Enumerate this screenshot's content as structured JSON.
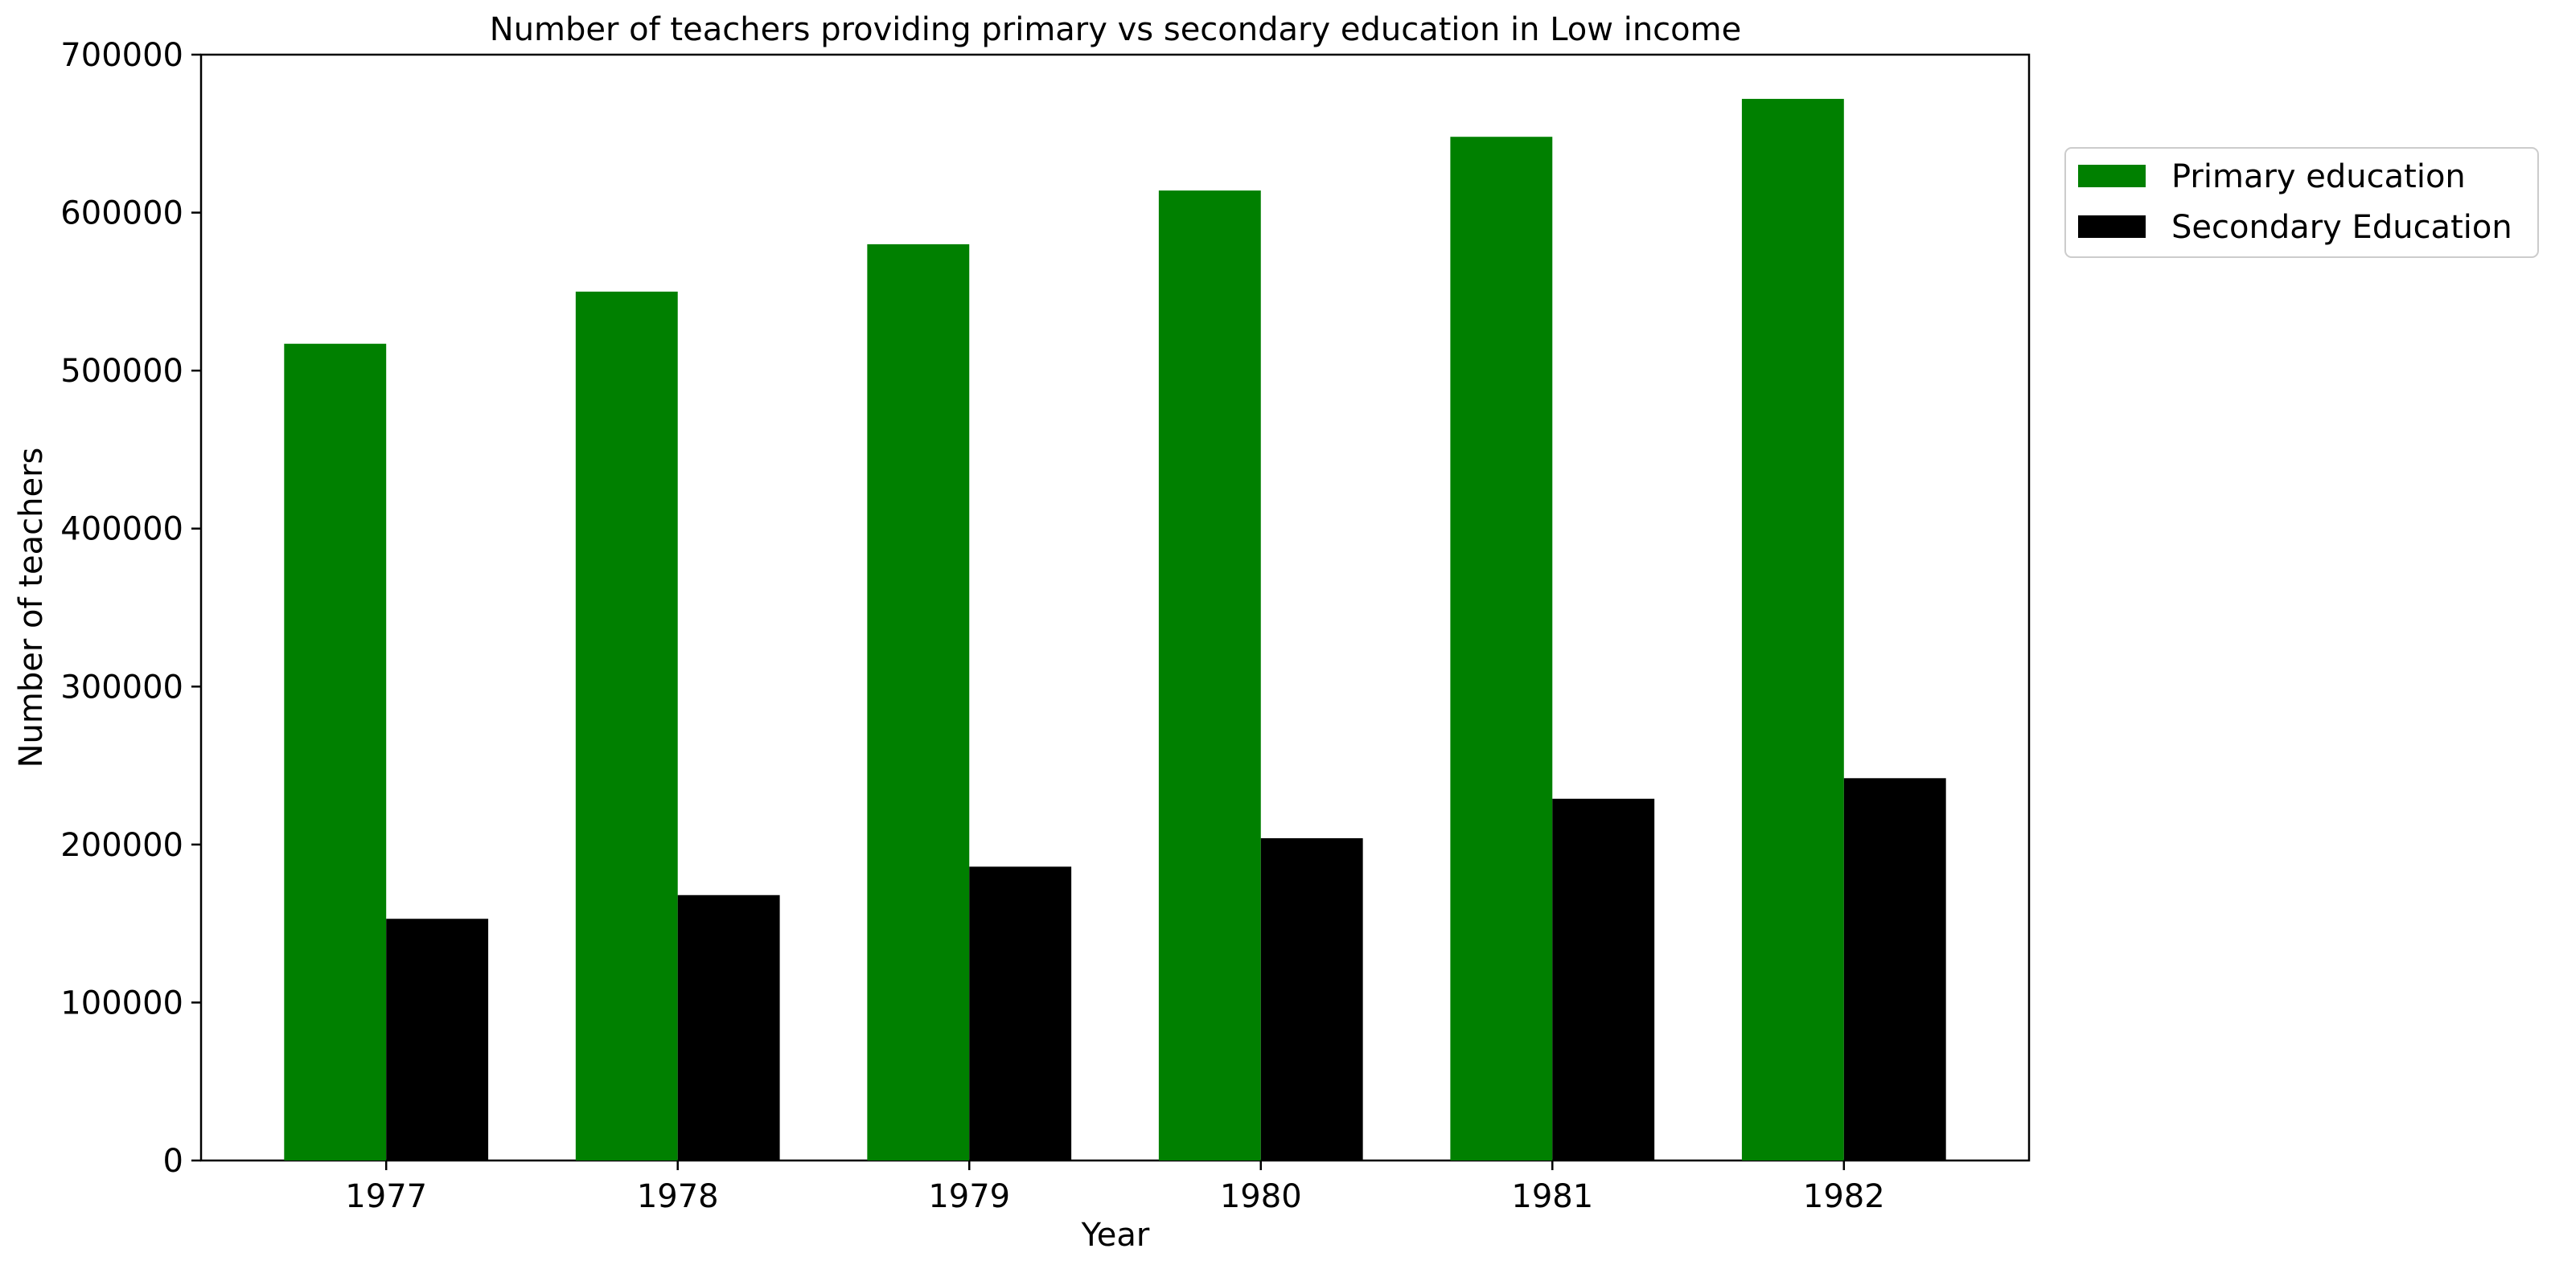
{
  "chart_data": {
    "type": "bar",
    "title": "Number of teachers providing primary vs secondary education in Low income",
    "xlabel": "Year",
    "ylabel": "Number of teachers",
    "categories": [
      "1977",
      "1978",
      "1979",
      "1980",
      "1981",
      "1982"
    ],
    "ylim": [
      0,
      700000
    ],
    "yticks": [
      0,
      100000,
      200000,
      300000,
      400000,
      500000,
      600000,
      700000
    ],
    "ytick_labels": [
      "0",
      "100000",
      "200000",
      "300000",
      "400000",
      "500000",
      "600000",
      "700000"
    ],
    "grid": false,
    "legend_position": "right, outside plot area, near top",
    "series": [
      {
        "name": "Primary education",
        "color": "#008000",
        "values": [
          517000,
          550000,
          580000,
          614000,
          648000,
          672000
        ]
      },
      {
        "name": "Secondary Education",
        "color": "#000000",
        "values": [
          153000,
          168000,
          186000,
          204000,
          229000,
          242000
        ]
      }
    ]
  }
}
